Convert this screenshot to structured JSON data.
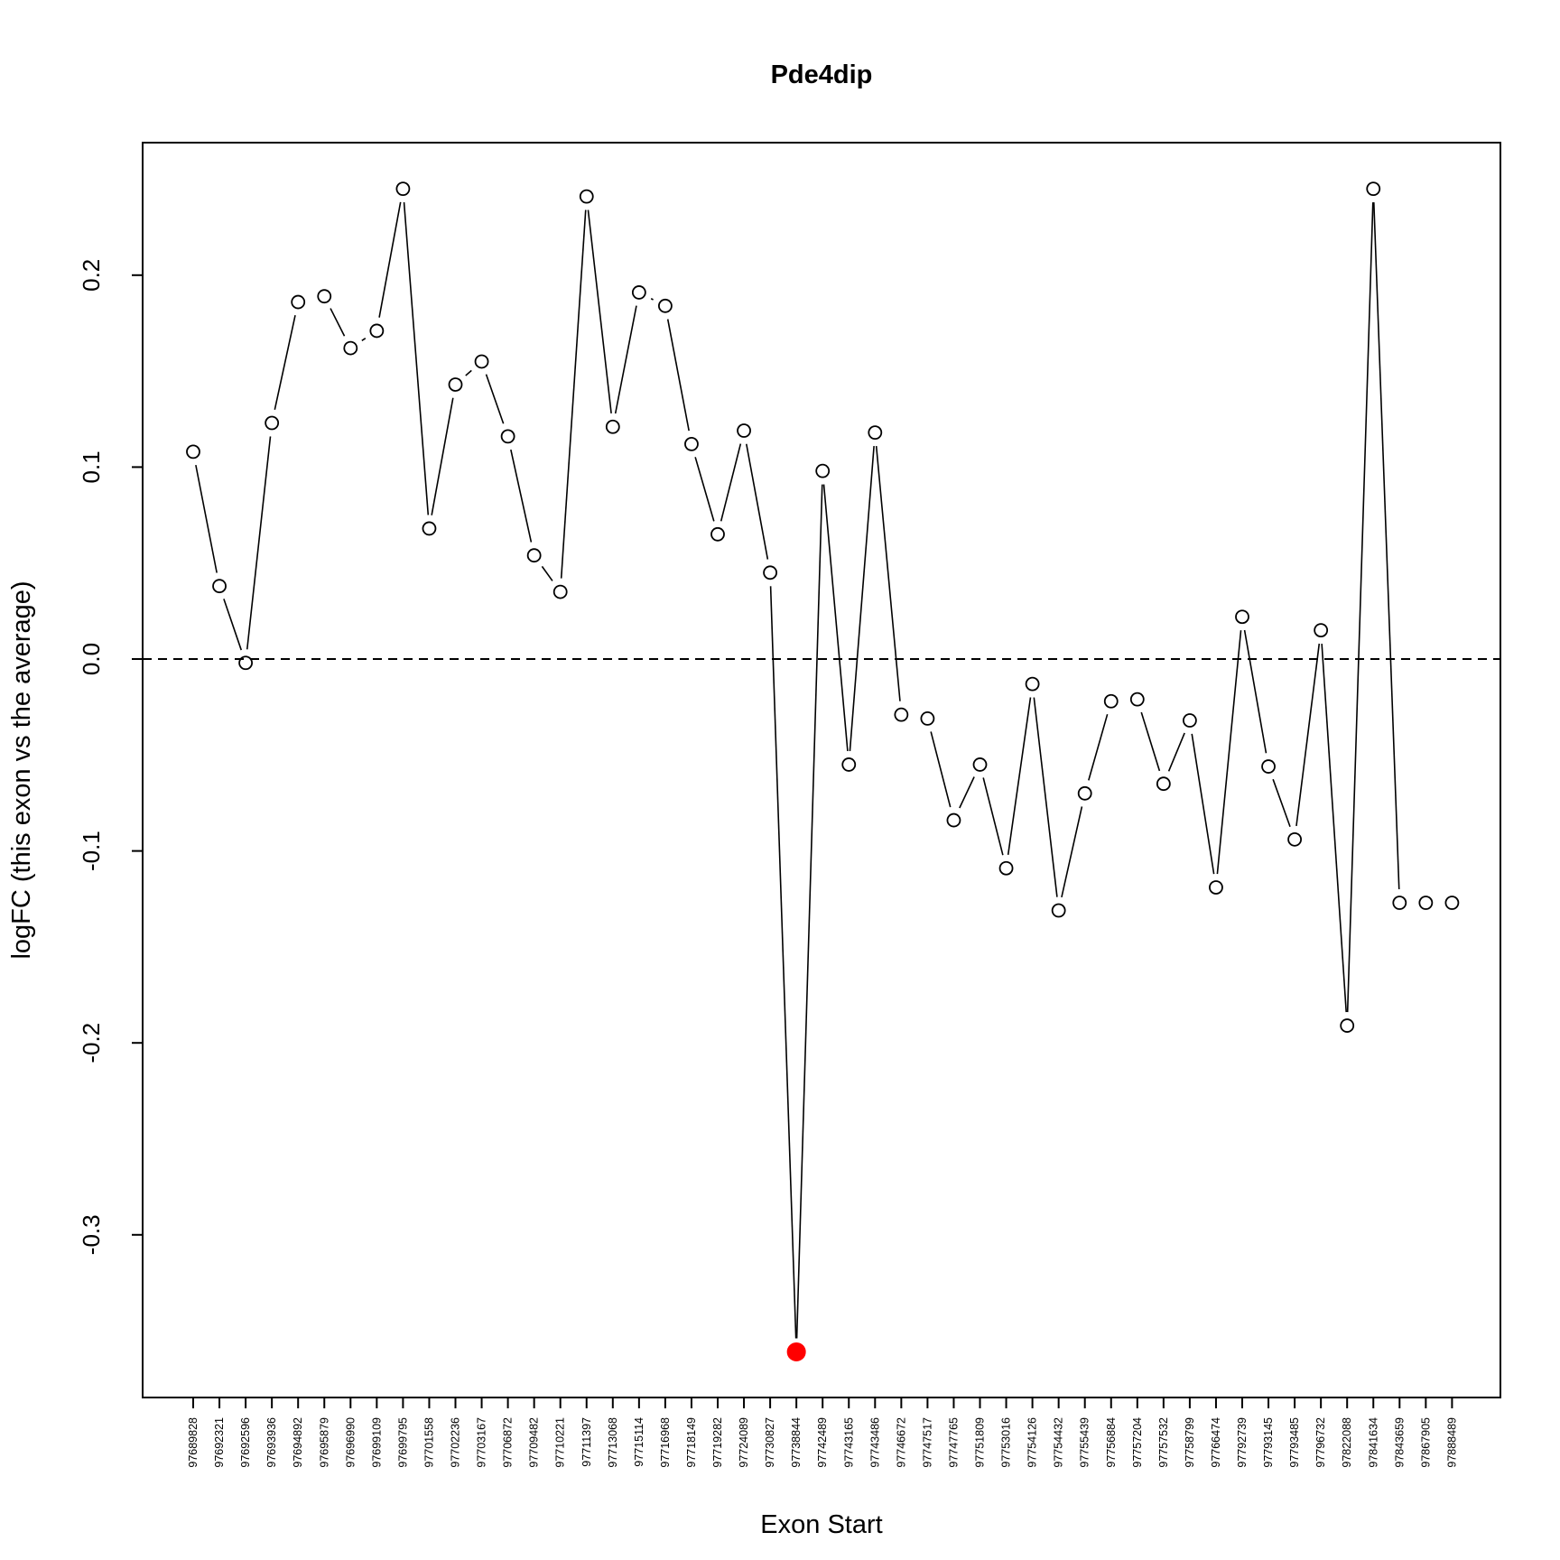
{
  "chart_data": {
    "type": "line",
    "title": "Pde4dip",
    "xlabel": "Exon Start",
    "ylabel": "logFC (this exon vs the average)",
    "ylim": [
      -0.36,
      0.265
    ],
    "yticks": [
      "-0.3",
      "-0.2",
      "-0.1",
      "0.0",
      "0.1",
      "0.2"
    ],
    "ytick_values": [
      -0.3,
      -0.2,
      -0.1,
      0.0,
      0.1,
      0.2
    ],
    "reference_line": 0.0,
    "highlight_color": "#ff0000",
    "categories": [
      "97689828",
      "97692321",
      "97692596",
      "97693936",
      "97694892",
      "97695879",
      "97696990",
      "97699109",
      "97699795",
      "97701558",
      "97702236",
      "97703167",
      "97706872",
      "97709482",
      "97710221",
      "97711397",
      "97713068",
      "97715114",
      "97716968",
      "97718149",
      "97719282",
      "97724089",
      "97730827",
      "97738844",
      "97742489",
      "97743165",
      "97743486",
      "97746672",
      "97747517",
      "97747765",
      "97751809",
      "97753016",
      "97754126",
      "97754432",
      "97755439",
      "97756884",
      "97757204",
      "97757532",
      "97758799",
      "97766474",
      "97792739",
      "97793145",
      "97793485",
      "97796732",
      "97822088",
      "97841634",
      "97843659",
      "97867905",
      "97888489"
    ],
    "values": [
      0.108,
      0.038,
      -0.002,
      0.123,
      0.186,
      0.189,
      0.162,
      0.171,
      0.245,
      0.068,
      0.143,
      0.155,
      0.116,
      0.054,
      0.035,
      0.241,
      0.121,
      0.191,
      0.184,
      0.112,
      0.065,
      0.119,
      0.045,
      -0.361,
      0.098,
      -0.055,
      0.118,
      -0.029,
      -0.031,
      -0.084,
      -0.055,
      -0.109,
      -0.013,
      -0.131,
      -0.07,
      -0.022,
      -0.021,
      -0.065,
      -0.032,
      -0.119,
      0.022,
      -0.056,
      -0.094,
      0.015,
      -0.191,
      0.245,
      -0.127,
      -0.127,
      -0.127
    ],
    "highlight_index": 23,
    "connected_count": 47,
    "grid": false,
    "legend": "none"
  }
}
